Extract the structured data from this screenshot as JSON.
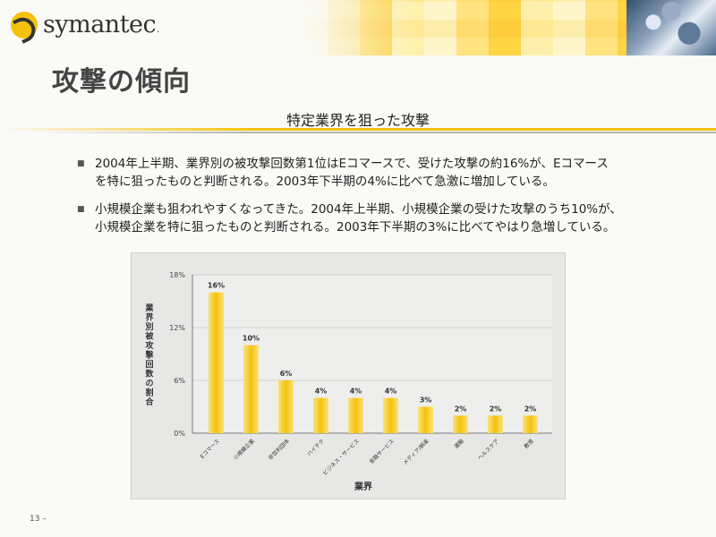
{
  "header": {
    "logo_text": "symantec",
    "logo_dot": "."
  },
  "title": "攻撃の傾向",
  "subtitle": "特定業界を狙った攻撃",
  "bullets": [
    {
      "line1": "2004年上半期、業界別の被攻撃回数第1位はEコマースで、受けた攻撃の約16%が、Eコマース",
      "line2": "を特に狙ったものと判断される。2003年下半期の4%に比べて急激に増加している。"
    },
    {
      "line1": "小規模企業も狙われやすくなってきた。2004年上半期、小規模企業の受けた攻撃のうち10%が、",
      "line2": "小規模企業を特に狙ったものと判断される。2003年下半期の3%に比べてやはり急増している。"
    }
  ],
  "page_number": "13 –",
  "colors": {
    "bar": "#f4c20d",
    "bar_light": "#fbe27a",
    "accent": "#f4c20d"
  },
  "chart_data": {
    "type": "bar",
    "categories": [
      "Eコマース",
      "小規模企業",
      "非営利団体",
      "ハイテク",
      "ビジネス・サービス",
      "金融サービス",
      "メディア/娯楽",
      "運輸",
      "ヘルスケア",
      "教育"
    ],
    "values": [
      16,
      10,
      6,
      4,
      4,
      4,
      3,
      2,
      2,
      2
    ],
    "data_labels": [
      "16%",
      "10%",
      "6%",
      "4%",
      "4%",
      "4%",
      "3%",
      "2%",
      "2%",
      "2%"
    ],
    "ylim": [
      0,
      18
    ],
    "yticks": [
      0,
      6,
      12,
      18
    ],
    "ytick_labels": [
      "0%",
      "6%",
      "12%",
      "18%"
    ],
    "xlabel": "業界",
    "ylabel": "業界別被攻撃回数の割合",
    "grid": "horizontal",
    "legend": "none"
  }
}
